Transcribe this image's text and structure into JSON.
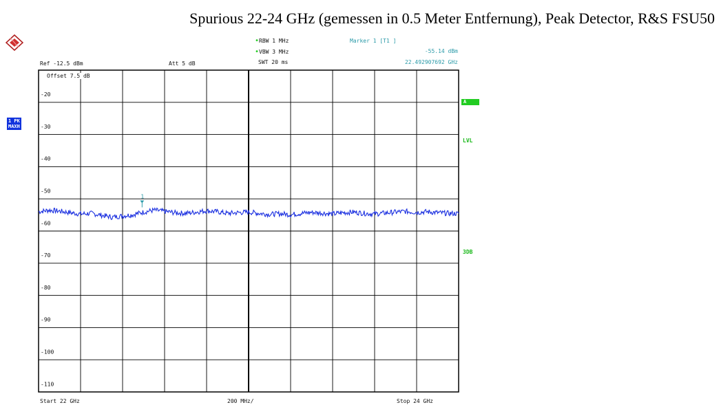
{
  "title": "Spurious 22-24 GHz (gemessen in 0.5 Meter Entfernung), Peak Detector, R&S FSU50",
  "header": {
    "ref": "Ref -12.5 dBm",
    "att": "Att  5 dB",
    "rbw": "RBW 1 MHz",
    "vbw": "VBW 3 MHz",
    "swt": "SWT 20 ms",
    "marker_label": "Marker 1 [T1 ]",
    "marker_level": "-55.14 dBm",
    "marker_freq": "22.492907692 GHz",
    "offset": "Offset  7.5 dB"
  },
  "side": {
    "trace_tag_line1": "1 PK",
    "trace_tag_line2": "MAXH",
    "a_tag": "A",
    "lvl_tag": "LVL",
    "db3_tag": "3DB"
  },
  "footer": {
    "start": "Start 22 GHz",
    "span_div": "200 MHz/",
    "stop": "Stop 24 GHz"
  },
  "colors": {
    "trace": "#1a2fe0",
    "grid": "#000000",
    "marker": "#2a9aa8",
    "status_green": "#22cc22",
    "trace_tag": "#1133dd"
  },
  "chart_data": {
    "type": "line",
    "title": "Spurious 22-24 GHz (gemessen in 0.5 Meter Entfernung), Peak Detector, R&S FSU50",
    "xlabel": "",
    "ylabel": "",
    "xlim": [
      22.0,
      24.0
    ],
    "ylim": [
      -112.5,
      -12.5
    ],
    "y_ticks": [
      -20,
      -30,
      -40,
      -50,
      -60,
      -70,
      -80,
      -90,
      -100,
      -110
    ],
    "y_tick_labels": [
      "-20",
      "-30",
      "-40",
      "-50",
      "-60",
      "-70",
      "-80",
      "-90",
      "-100",
      "-110"
    ],
    "grid": true,
    "x_divisions": 10,
    "y_divisions": 10,
    "series": [
      {
        "x": [
          22.0,
          22.05,
          22.1,
          22.15,
          22.2,
          22.25,
          22.3,
          22.35,
          22.4,
          22.45,
          22.5,
          22.55,
          22.6,
          22.65,
          22.7,
          22.75,
          22.8,
          22.85,
          22.9,
          22.95,
          23.0,
          23.05,
          23.1,
          23.15,
          23.2,
          23.25,
          23.3,
          23.35,
          23.4,
          23.45,
          23.5,
          23.55,
          23.6,
          23.65,
          23.7,
          23.75,
          23.8,
          23.85,
          23.9,
          23.95,
          24.0
        ],
        "y": [
          -56.5,
          -56.0,
          -56.3,
          -56.8,
          -57.2,
          -57.0,
          -57.6,
          -58.2,
          -57.8,
          -57.4,
          -56.6,
          -56.0,
          -56.4,
          -56.8,
          -57.0,
          -56.6,
          -56.2,
          -56.5,
          -57.0,
          -56.8,
          -56.6,
          -57.0,
          -57.3,
          -57.1,
          -57.4,
          -57.0,
          -56.7,
          -56.9,
          -57.2,
          -56.8,
          -56.6,
          -57.0,
          -57.2,
          -56.9,
          -56.6,
          -56.4,
          -56.7,
          -56.5,
          -56.8,
          -57.0,
          -57.1
        ]
      }
    ],
    "marker": {
      "name": "1",
      "x": 22.492907692,
      "y": -55.14
    }
  }
}
